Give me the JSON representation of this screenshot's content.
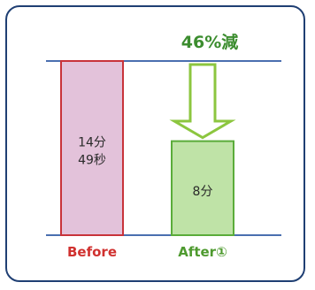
{
  "colors": {
    "frame": "#1f3f73",
    "reference_line": "#4a6fb0",
    "before_fill": "#e3c2da",
    "before_stroke": "#c8333a",
    "before_label": "#d0312f",
    "after_fill": "#bfe3a7",
    "after_stroke": "#5aac3a",
    "after_label": "#4e9a2f",
    "arrow_fill": "#ffffff",
    "arrow_stroke": "#8cc63f",
    "bar_text": "#2a2a2a",
    "reduction_text": "#3c8d2f"
  },
  "chart_data": {
    "type": "bar",
    "categories": [
      "Before",
      "After①"
    ],
    "values_seconds": [
      889,
      480
    ],
    "value_labels": [
      [
        "14分",
        "49秒"
      ],
      [
        "8分"
      ]
    ],
    "annotation": "46%減",
    "ylim": [
      0,
      889
    ]
  }
}
